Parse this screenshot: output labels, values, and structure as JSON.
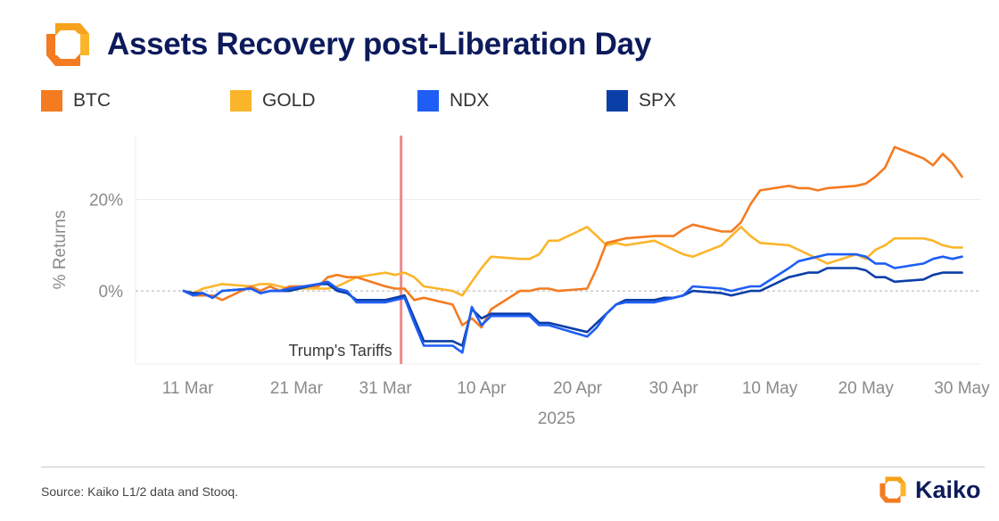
{
  "header": {
    "title": "Assets Recovery post-Liberation Day",
    "logo_icon": "kaiko-logo-icon"
  },
  "footer": {
    "source": "Source: Kaiko L1/2 data and Stooq.",
    "brand_name": "Kaiko"
  },
  "colors": {
    "BTC": "#f47b20",
    "GOLD": "#fbb52a",
    "NDX": "#1e5ef5",
    "SPX": "#0b3fa8",
    "event_line": "#f08a8a",
    "grid": "#ececec",
    "zero_line": "#b0b0b0",
    "title": "#0d1b5c"
  },
  "chart_data": {
    "type": "line",
    "title": "Assets Recovery post-Liberation Day",
    "ylabel": "% Returns",
    "xlabel": "2025",
    "x_tick_labels": [
      "11 Mar",
      "21 Mar",
      "31 Mar",
      "10 Apr",
      "20 Apr",
      "30 Apr",
      "10 May",
      "20 May",
      "30 May"
    ],
    "y_tick_labels": [
      "0%",
      "20%"
    ],
    "ylim": [
      -16,
      34
    ],
    "xlim": [
      "2025-03-05",
      "2025-06-01"
    ],
    "grid": true,
    "legend": "top",
    "annotations": [
      {
        "text": "Trump's Tariffs",
        "date": "2025-04-02"
      }
    ],
    "series": [
      {
        "name": "BTC",
        "points": [
          [
            "2025-03-10",
            0
          ],
          [
            "2025-03-11",
            -1
          ],
          [
            "2025-03-13",
            -1
          ],
          [
            "2025-03-14",
            -2
          ],
          [
            "2025-03-17",
            1
          ],
          [
            "2025-03-18",
            0
          ],
          [
            "2025-03-19",
            1
          ],
          [
            "2025-03-20",
            0
          ],
          [
            "2025-03-21",
            1
          ],
          [
            "2025-03-24",
            1
          ],
          [
            "2025-03-25",
            3
          ],
          [
            "2025-03-26",
            3.5
          ],
          [
            "2025-03-27",
            3
          ],
          [
            "2025-03-28",
            3
          ],
          [
            "2025-03-31",
            1
          ],
          [
            "2025-04-01",
            0.5
          ],
          [
            "2025-04-02",
            0.5
          ],
          [
            "2025-04-03",
            -2
          ],
          [
            "2025-04-04",
            -1.5
          ],
          [
            "2025-04-07",
            -3
          ],
          [
            "2025-04-08",
            -7.5
          ],
          [
            "2025-04-09",
            -6
          ],
          [
            "2025-04-10",
            -8
          ],
          [
            "2025-04-11",
            -4
          ],
          [
            "2025-04-14",
            0
          ],
          [
            "2025-04-15",
            0
          ],
          [
            "2025-04-16",
            0.5
          ],
          [
            "2025-04-17",
            0.5
          ],
          [
            "2025-04-18",
            0
          ],
          [
            "2025-04-21",
            0.5
          ],
          [
            "2025-04-22",
            5
          ],
          [
            "2025-04-23",
            10.5
          ],
          [
            "2025-04-24",
            11
          ],
          [
            "2025-04-25",
            11.5
          ],
          [
            "2025-04-28",
            12
          ],
          [
            "2025-04-29",
            12
          ],
          [
            "2025-04-30",
            12
          ],
          [
            "2025-05-01",
            13.5
          ],
          [
            "2025-05-02",
            14.5
          ],
          [
            "2025-05-05",
            13
          ],
          [
            "2025-05-06",
            13
          ],
          [
            "2025-05-07",
            15
          ],
          [
            "2025-05-08",
            19
          ],
          [
            "2025-05-09",
            22
          ],
          [
            "2025-05-12",
            23
          ],
          [
            "2025-05-13",
            22.5
          ],
          [
            "2025-05-14",
            22.5
          ],
          [
            "2025-05-15",
            22
          ],
          [
            "2025-05-16",
            22.5
          ],
          [
            "2025-05-19",
            23
          ],
          [
            "2025-05-20",
            23.5
          ],
          [
            "2025-05-21",
            25
          ],
          [
            "2025-05-22",
            27
          ],
          [
            "2025-05-23",
            31.5
          ],
          [
            "2025-05-26",
            29
          ],
          [
            "2025-05-27",
            27.5
          ],
          [
            "2025-05-28",
            30
          ],
          [
            "2025-05-29",
            28
          ],
          [
            "2025-05-30",
            25
          ]
        ]
      },
      {
        "name": "GOLD",
        "points": [
          [
            "2025-03-10",
            0
          ],
          [
            "2025-03-11",
            -0.5
          ],
          [
            "2025-03-12",
            0.5
          ],
          [
            "2025-03-13",
            1
          ],
          [
            "2025-03-14",
            1.5
          ],
          [
            "2025-03-17",
            1
          ],
          [
            "2025-03-18",
            1.5
          ],
          [
            "2025-03-19",
            1.5
          ],
          [
            "2025-03-20",
            1
          ],
          [
            "2025-03-21",
            0.5
          ],
          [
            "2025-03-24",
            0.5
          ],
          [
            "2025-03-25",
            0.5
          ],
          [
            "2025-03-26",
            1
          ],
          [
            "2025-03-27",
            2
          ],
          [
            "2025-03-28",
            3
          ],
          [
            "2025-03-31",
            4
          ],
          [
            "2025-04-01",
            3.5
          ],
          [
            "2025-04-02",
            4
          ],
          [
            "2025-04-03",
            3
          ],
          [
            "2025-04-04",
            1
          ],
          [
            "2025-04-07",
            0
          ],
          [
            "2025-04-08",
            -1
          ],
          [
            "2025-04-09",
            2
          ],
          [
            "2025-04-10",
            5
          ],
          [
            "2025-04-11",
            7.5
          ],
          [
            "2025-04-14",
            7
          ],
          [
            "2025-04-15",
            7
          ],
          [
            "2025-04-16",
            8
          ],
          [
            "2025-04-17",
            11
          ],
          [
            "2025-04-18",
            11
          ],
          [
            "2025-04-21",
            14
          ],
          [
            "2025-04-22",
            12
          ],
          [
            "2025-04-23",
            10
          ],
          [
            "2025-04-24",
            10.5
          ],
          [
            "2025-04-25",
            10
          ],
          [
            "2025-04-28",
            11
          ],
          [
            "2025-04-29",
            10
          ],
          [
            "2025-04-30",
            9
          ],
          [
            "2025-05-01",
            8
          ],
          [
            "2025-05-02",
            7.5
          ],
          [
            "2025-05-05",
            10
          ],
          [
            "2025-05-06",
            12
          ],
          [
            "2025-05-07",
            14
          ],
          [
            "2025-05-08",
            12
          ],
          [
            "2025-05-09",
            10.5
          ],
          [
            "2025-05-12",
            10
          ],
          [
            "2025-05-13",
            9
          ],
          [
            "2025-05-14",
            8
          ],
          [
            "2025-05-15",
            7
          ],
          [
            "2025-05-16",
            6
          ],
          [
            "2025-05-19",
            8
          ],
          [
            "2025-05-20",
            7
          ],
          [
            "2025-05-21",
            9
          ],
          [
            "2025-05-22",
            10
          ],
          [
            "2025-05-23",
            11.5
          ],
          [
            "2025-05-26",
            11.5
          ],
          [
            "2025-05-27",
            11
          ],
          [
            "2025-05-28",
            10
          ],
          [
            "2025-05-29",
            9.5
          ],
          [
            "2025-05-30",
            9.5
          ]
        ]
      },
      {
        "name": "NDX",
        "points": [
          [
            "2025-03-10",
            0
          ],
          [
            "2025-03-11",
            -1
          ],
          [
            "2025-03-12",
            -0.5
          ],
          [
            "2025-03-13",
            -1.5
          ],
          [
            "2025-03-14",
            0
          ],
          [
            "2025-03-17",
            0.5
          ],
          [
            "2025-03-18",
            -0.5
          ],
          [
            "2025-03-19",
            0
          ],
          [
            "2025-03-20",
            0
          ],
          [
            "2025-03-21",
            0.5
          ],
          [
            "2025-03-24",
            1.5
          ],
          [
            "2025-03-25",
            2
          ],
          [
            "2025-03-26",
            0.5
          ],
          [
            "2025-03-27",
            0
          ],
          [
            "2025-03-28",
            -2.5
          ],
          [
            "2025-03-31",
            -2.5
          ],
          [
            "2025-04-01",
            -2
          ],
          [
            "2025-04-02",
            -1.5
          ],
          [
            "2025-04-03",
            -7
          ],
          [
            "2025-04-04",
            -12
          ],
          [
            "2025-04-07",
            -12
          ],
          [
            "2025-04-08",
            -13.5
          ],
          [
            "2025-04-09",
            -3.5
          ],
          [
            "2025-04-10",
            -7.5
          ],
          [
            "2025-04-11",
            -5.5
          ],
          [
            "2025-04-14",
            -5.5
          ],
          [
            "2025-04-15",
            -5.5
          ],
          [
            "2025-04-16",
            -7.5
          ],
          [
            "2025-04-17",
            -7.5
          ],
          [
            "2025-04-21",
            -10
          ],
          [
            "2025-04-22",
            -8
          ],
          [
            "2025-04-23",
            -5
          ],
          [
            "2025-04-24",
            -3
          ],
          [
            "2025-04-25",
            -2.5
          ],
          [
            "2025-04-28",
            -2.5
          ],
          [
            "2025-04-29",
            -2
          ],
          [
            "2025-04-30",
            -1.5
          ],
          [
            "2025-05-01",
            -1
          ],
          [
            "2025-05-02",
            1
          ],
          [
            "2025-05-05",
            0.5
          ],
          [
            "2025-05-06",
            0
          ],
          [
            "2025-05-07",
            0.5
          ],
          [
            "2025-05-08",
            1
          ],
          [
            "2025-05-09",
            1
          ],
          [
            "2025-05-12",
            5
          ],
          [
            "2025-05-13",
            6.5
          ],
          [
            "2025-05-14",
            7
          ],
          [
            "2025-05-15",
            7.5
          ],
          [
            "2025-05-16",
            8
          ],
          [
            "2025-05-19",
            8
          ],
          [
            "2025-05-20",
            7.5
          ],
          [
            "2025-05-21",
            6
          ],
          [
            "2025-05-22",
            6
          ],
          [
            "2025-05-23",
            5
          ],
          [
            "2025-05-26",
            6
          ],
          [
            "2025-05-27",
            7
          ],
          [
            "2025-05-28",
            7.5
          ],
          [
            "2025-05-29",
            7
          ],
          [
            "2025-05-30",
            7.5
          ]
        ]
      },
      {
        "name": "SPX",
        "points": [
          [
            "2025-03-10",
            0
          ],
          [
            "2025-03-11",
            -0.5
          ],
          [
            "2025-03-12",
            -0.5
          ],
          [
            "2025-03-13",
            -1.5
          ],
          [
            "2025-03-14",
            0
          ],
          [
            "2025-03-17",
            0.5
          ],
          [
            "2025-03-18",
            -0.5
          ],
          [
            "2025-03-19",
            0
          ],
          [
            "2025-03-20",
            0
          ],
          [
            "2025-03-21",
            0
          ],
          [
            "2025-03-24",
            1.5
          ],
          [
            "2025-03-25",
            1.5
          ],
          [
            "2025-03-26",
            0
          ],
          [
            "2025-03-27",
            -0.5
          ],
          [
            "2025-03-28",
            -2
          ],
          [
            "2025-03-31",
            -2
          ],
          [
            "2025-04-01",
            -1.5
          ],
          [
            "2025-04-02",
            -1
          ],
          [
            "2025-04-03",
            -6
          ],
          [
            "2025-04-04",
            -11
          ],
          [
            "2025-04-07",
            -11
          ],
          [
            "2025-04-08",
            -12
          ],
          [
            "2025-04-09",
            -4
          ],
          [
            "2025-04-10",
            -6
          ],
          [
            "2025-04-11",
            -5
          ],
          [
            "2025-04-14",
            -5
          ],
          [
            "2025-04-15",
            -5
          ],
          [
            "2025-04-16",
            -7
          ],
          [
            "2025-04-17",
            -7
          ],
          [
            "2025-04-21",
            -9
          ],
          [
            "2025-04-22",
            -7
          ],
          [
            "2025-04-23",
            -5
          ],
          [
            "2025-04-24",
            -3
          ],
          [
            "2025-04-25",
            -2
          ],
          [
            "2025-04-28",
            -2
          ],
          [
            "2025-04-29",
            -1.5
          ],
          [
            "2025-04-30",
            -1.5
          ],
          [
            "2025-05-01",
            -1
          ],
          [
            "2025-05-02",
            0
          ],
          [
            "2025-05-05",
            -0.5
          ],
          [
            "2025-05-06",
            -1
          ],
          [
            "2025-05-07",
            -0.5
          ],
          [
            "2025-05-08",
            0
          ],
          [
            "2025-05-09",
            0
          ],
          [
            "2025-05-12",
            3
          ],
          [
            "2025-05-13",
            3.5
          ],
          [
            "2025-05-14",
            4
          ],
          [
            "2025-05-15",
            4
          ],
          [
            "2025-05-16",
            5
          ],
          [
            "2025-05-19",
            5
          ],
          [
            "2025-05-20",
            4.5
          ],
          [
            "2025-05-21",
            3
          ],
          [
            "2025-05-22",
            3
          ],
          [
            "2025-05-23",
            2
          ],
          [
            "2025-05-26",
            2.5
          ],
          [
            "2025-05-27",
            3.5
          ],
          [
            "2025-05-28",
            4
          ],
          [
            "2025-05-29",
            4
          ],
          [
            "2025-05-30",
            4
          ]
        ]
      }
    ]
  }
}
